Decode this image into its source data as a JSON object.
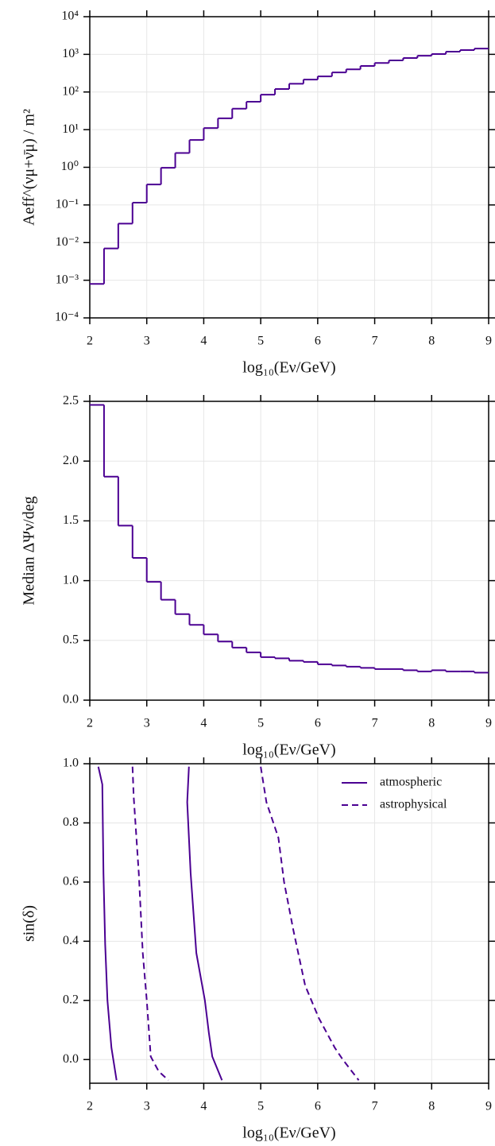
{
  "chart_data": [
    {
      "type": "histogram",
      "log": true,
      "color": "#4b0092",
      "grid": true,
      "ylabel": "Aeff^(νμ+ν̄μ) / m²",
      "xlabel": "log₁₀(Eν/GeV)",
      "bins": [
        2,
        2.25,
        2.5,
        2.75,
        3,
        3.25,
        3.5,
        3.75,
        4,
        4.25,
        4.5,
        4.75,
        5,
        5.25,
        5.5,
        5.75,
        6,
        6.25,
        6.5,
        6.75,
        7,
        7.25,
        7.5,
        7.75,
        8,
        8.25,
        8.5,
        8.75,
        9
      ],
      "values": [
        0.0008,
        0.007,
        0.032,
        0.115,
        0.35,
        0.97,
        2.4,
        5.3,
        11,
        20,
        36,
        55,
        85,
        120,
        166,
        214,
        260,
        330,
        400,
        490,
        590,
        690,
        800,
        920,
        1020,
        1180,
        1300,
        1420
      ],
      "xlim": [
        2,
        9
      ],
      "xticks": [
        2,
        3,
        4,
        5,
        6,
        7,
        8,
        9
      ],
      "ylim": [
        0.0001,
        10000
      ],
      "yticks": [
        {
          "value": 0.0001,
          "label": "10⁻⁴"
        },
        {
          "value": 0.001,
          "label": "10⁻³"
        },
        {
          "value": 0.01,
          "label": "10⁻²"
        },
        {
          "value": 0.1,
          "label": "10⁻¹"
        },
        {
          "value": 1,
          "label": "10⁰"
        },
        {
          "value": 10,
          "label": "10¹"
        },
        {
          "value": 100,
          "label": "10²"
        },
        {
          "value": 1000,
          "label": "10³"
        },
        {
          "value": 10000,
          "label": "10⁴"
        }
      ]
    },
    {
      "type": "histogram",
      "log": false,
      "color": "#4b0092",
      "grid": true,
      "ylabel": "Median ΔΨν/deg",
      "xlabel": "log₁₀(Eν/GeV)",
      "bins": [
        2,
        2.25,
        2.5,
        2.75,
        3,
        3.25,
        3.5,
        3.75,
        4,
        4.25,
        4.5,
        4.75,
        5,
        5.25,
        5.5,
        5.75,
        6,
        6.25,
        6.5,
        6.75,
        7,
        7.25,
        7.5,
        7.75,
        8,
        8.25,
        8.5,
        8.75,
        9
      ],
      "values": [
        2.47,
        1.87,
        1.46,
        1.19,
        0.99,
        0.84,
        0.72,
        0.63,
        0.55,
        0.49,
        0.44,
        0.4,
        0.36,
        0.35,
        0.33,
        0.32,
        0.3,
        0.29,
        0.28,
        0.27,
        0.26,
        0.26,
        0.25,
        0.24,
        0.25,
        0.24,
        0.24,
        0.23
      ],
      "xlim": [
        2,
        9
      ],
      "xticks": [
        2,
        3,
        4,
        5,
        6,
        7,
        8,
        9
      ],
      "ylim": [
        0,
        2.5
      ],
      "yticks": [
        {
          "value": 0,
          "label": "0.0"
        },
        0.5,
        {
          "value": 1,
          "label": "1.0"
        },
        1.5,
        {
          "value": 2,
          "label": "2.0"
        },
        2.5
      ]
    },
    {
      "type": "line",
      "grid": true,
      "legend": "upper right",
      "ylabel": "sin(δ)",
      "xlabel": "log₁₀(Eν/GeV)",
      "series": [
        {
          "name": "atmospheric",
          "color": "#4b0092",
          "dashed": false,
          "x": [
            2.15,
            2.22,
            2.24,
            2.27,
            2.31,
            2.38,
            2.47,
            null,
            3.74,
            3.71,
            3.77,
            3.87,
            4.02,
            4.09,
            4.15,
            4.32
          ],
          "values": [
            0.99,
            0.93,
            0.63,
            0.39,
            0.2,
            0.04,
            -0.07,
            null,
            0.99,
            0.87,
            0.63,
            0.36,
            0.2,
            0.09,
            0.01,
            -0.07
          ]
        },
        {
          "name": "astrophysical",
          "color": "#4b0092",
          "dashed": true,
          "x": [
            2.75,
            2.77,
            2.86,
            2.93,
            3.0,
            3.07,
            3.21,
            3.38,
            null,
            5.0,
            5.1,
            5.31,
            5.41,
            5.57,
            5.78,
            6.02,
            6.3,
            6.44,
            6.72
          ],
          "values": [
            0.99,
            0.89,
            0.63,
            0.36,
            0.2,
            0.01,
            -0.04,
            -0.07,
            null,
            0.99,
            0.87,
            0.75,
            0.6,
            0.44,
            0.25,
            0.14,
            0.04,
            0,
            -0.07
          ]
        }
      ],
      "xlim": [
        2,
        9
      ],
      "xticks": [
        2,
        3,
        4,
        5,
        6,
        7,
        8,
        9
      ],
      "ylim": [
        -0.08,
        1.0
      ],
      "yticks": [
        {
          "value": 0,
          "label": "0.0"
        },
        0.2,
        0.4,
        0.6,
        0.8,
        {
          "value": 1,
          "label": "1.0"
        }
      ]
    }
  ]
}
